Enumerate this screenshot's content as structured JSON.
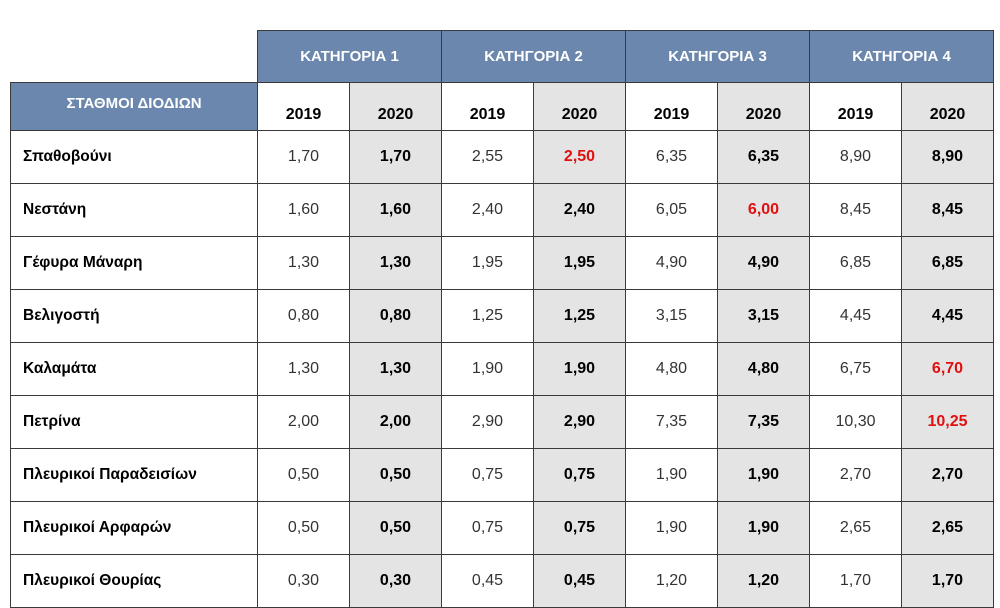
{
  "header": {
    "station_col": "ΣΤΑΘΜΟΙ ΔΙΟΔΙΩΝ",
    "categories": [
      "ΚΑΤΗΓΟΡΙΑ 1",
      "ΚΑΤΗΓΟΡΙΑ 2",
      "ΚΑΤΗΓΟΡΙΑ 3",
      "ΚΑΤΗΓΟΡΙΑ 4"
    ],
    "years": [
      "2019",
      "2020"
    ]
  },
  "colors": {
    "header_bg": "#6b87ad",
    "shaded_col": "#e4e4e4",
    "changed_value": "#e01010"
  },
  "rows": [
    {
      "name": "Σπαθοβούνι",
      "values": [
        "1,70",
        "1,70",
        "2,55",
        "2,50",
        "6,35",
        "6,35",
        "8,90",
        "8,90"
      ],
      "changed": [
        false,
        false,
        false,
        true,
        false,
        false,
        false,
        false
      ]
    },
    {
      "name": "Νεστάνη",
      "values": [
        "1,60",
        "1,60",
        "2,40",
        "2,40",
        "6,05",
        "6,00",
        "8,45",
        "8,45"
      ],
      "changed": [
        false,
        false,
        false,
        false,
        false,
        true,
        false,
        false
      ]
    },
    {
      "name": "Γέφυρα Μάναρη",
      "values": [
        "1,30",
        "1,30",
        "1,95",
        "1,95",
        "4,90",
        "4,90",
        "6,85",
        "6,85"
      ],
      "changed": [
        false,
        false,
        false,
        false,
        false,
        false,
        false,
        false
      ]
    },
    {
      "name": "Βελιγοστή",
      "values": [
        "0,80",
        "0,80",
        "1,25",
        "1,25",
        "3,15",
        "3,15",
        "4,45",
        "4,45"
      ],
      "changed": [
        false,
        false,
        false,
        false,
        false,
        false,
        false,
        false
      ]
    },
    {
      "name": "Καλαμάτα",
      "values": [
        "1,30",
        "1,30",
        "1,90",
        "1,90",
        "4,80",
        "4,80",
        "6,75",
        "6,70"
      ],
      "changed": [
        false,
        false,
        false,
        false,
        false,
        false,
        false,
        true
      ]
    },
    {
      "name": "Πετρίνα",
      "values": [
        "2,00",
        "2,00",
        "2,90",
        "2,90",
        "7,35",
        "7,35",
        "10,30",
        "10,25"
      ],
      "changed": [
        false,
        false,
        false,
        false,
        false,
        false,
        false,
        true
      ]
    },
    {
      "name": "Πλευρικοί Παραδεισίων",
      "values": [
        "0,50",
        "0,50",
        "0,75",
        "0,75",
        "1,90",
        "1,90",
        "2,70",
        "2,70"
      ],
      "changed": [
        false,
        false,
        false,
        false,
        false,
        false,
        false,
        false
      ]
    },
    {
      "name": "Πλευρικοί Αρφαρών",
      "values": [
        "0,50",
        "0,50",
        "0,75",
        "0,75",
        "1,90",
        "1,90",
        "2,65",
        "2,65"
      ],
      "changed": [
        false,
        false,
        false,
        false,
        false,
        false,
        false,
        false
      ]
    },
    {
      "name": "Πλευρικοί Θουρίας",
      "values": [
        "0,30",
        "0,30",
        "0,45",
        "0,45",
        "1,20",
        "1,20",
        "1,70",
        "1,70"
      ],
      "changed": [
        false,
        false,
        false,
        false,
        false,
        false,
        false,
        false
      ]
    }
  ]
}
